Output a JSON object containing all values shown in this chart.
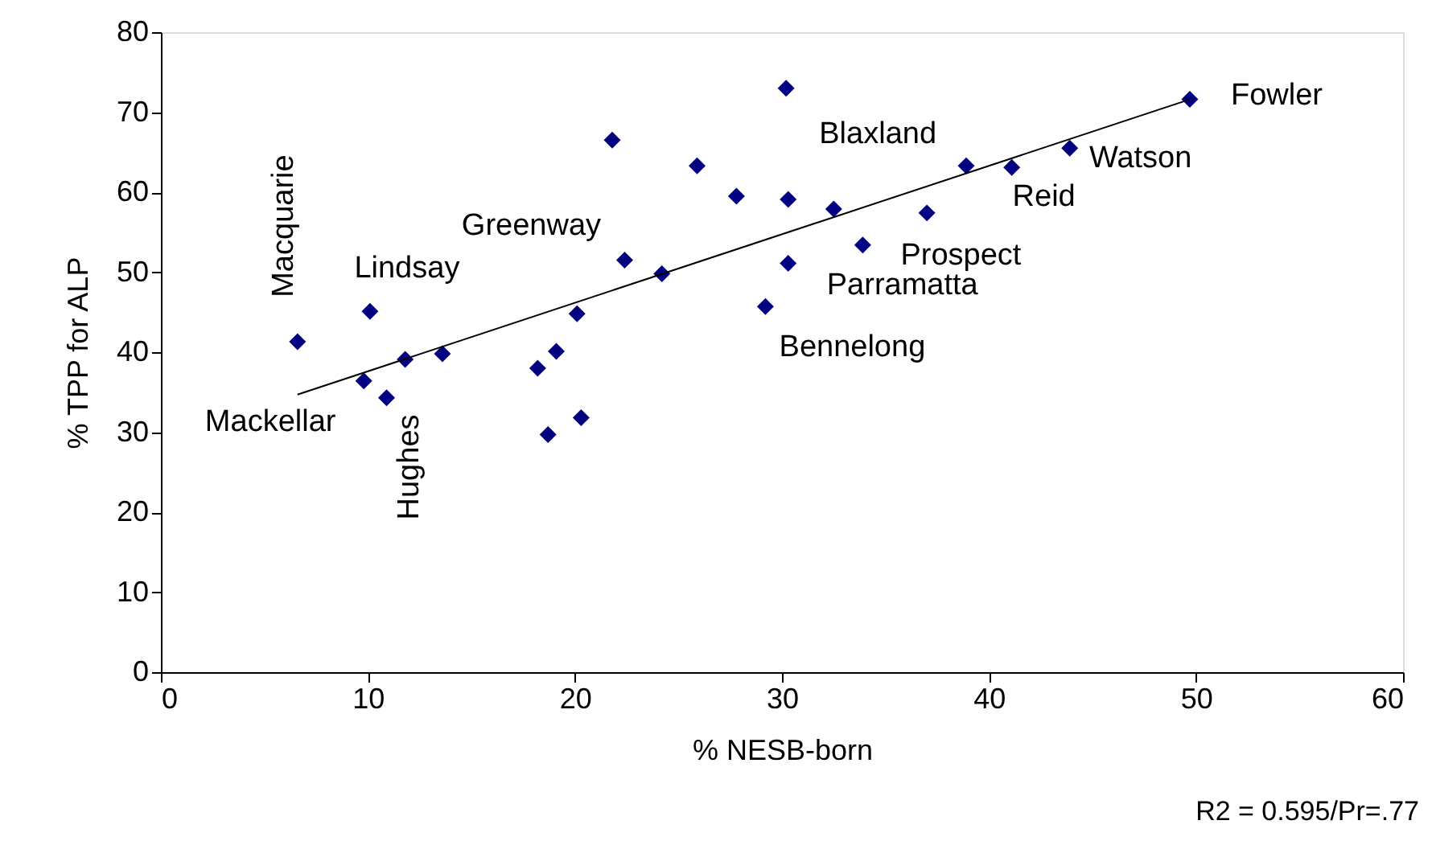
{
  "chart_data": {
    "type": "scatter",
    "xlabel": "% NESB-born",
    "ylabel": "% TPP for ALP",
    "xlim": [
      0,
      60
    ],
    "ylim": [
      0,
      80
    ],
    "xticks": [
      0,
      10,
      20,
      30,
      40,
      50,
      60
    ],
    "yticks": [
      0,
      10,
      20,
      30,
      40,
      50,
      60,
      70,
      80
    ],
    "grid": false,
    "marker": "diamond",
    "series": [
      {
        "color": "#000080",
        "x": [
          6.6,
          10.1,
          9.8,
          10.9,
          11.8,
          13.6,
          18.2,
          19.1,
          18.7,
          20.3,
          20.1,
          21.8,
          22.4,
          24.2,
          25.9,
          27.8,
          29.2,
          30.2,
          30.3,
          30.3,
          32.5,
          37.0,
          33.9,
          38.9,
          41.1,
          43.9,
          49.7
        ],
        "values": [
          41.3,
          45.1,
          36.4,
          34.3,
          39.1,
          39.8,
          38.0,
          40.1,
          29.7,
          31.8,
          44.8,
          66.5,
          51.5,
          49.8,
          63.3,
          59.5,
          45.7,
          73.0,
          59.1,
          51.1,
          57.9,
          57.4,
          53.4,
          63.3,
          63.1,
          65.5,
          71.6
        ]
      },
      {
        "type": "line",
        "marker": "none",
        "line_style": "solid",
        "color": "#000000",
        "x": [
          6.6,
          49.7
        ],
        "values": [
          34.7,
          71.6
        ]
      }
    ],
    "annotations": [
      {
        "text": "Macquarie",
        "x": 6.6,
        "y": 41.3
      },
      {
        "text": "Lindsay",
        "x": 10.1,
        "y": 45.1
      },
      {
        "text": "Greenway",
        "x": 22.4,
        "y": 51.5
      },
      {
        "text": "Mackellar",
        "x": 9.8,
        "y": 36.4
      },
      {
        "text": "Hughes",
        "x": 11.8,
        "y": 39.1
      },
      {
        "text": "Blaxland",
        "x": 30.2,
        "y": 73.0
      },
      {
        "text": "Bennelong",
        "x": 29.2,
        "y": 45.7
      },
      {
        "text": "Parramatta",
        "x": 30.3,
        "y": 51.1
      },
      {
        "text": "Prospect",
        "x": 33.9,
        "y": 53.4
      },
      {
        "text": "Reid",
        "x": 41.1,
        "y": 63.1
      },
      {
        "text": "Watson",
        "x": 43.9,
        "y": 65.5
      },
      {
        "text": "Fowler",
        "x": 49.7,
        "y": 71.6
      },
      "R2 = 0.595/Pr=.77"
    ]
  }
}
